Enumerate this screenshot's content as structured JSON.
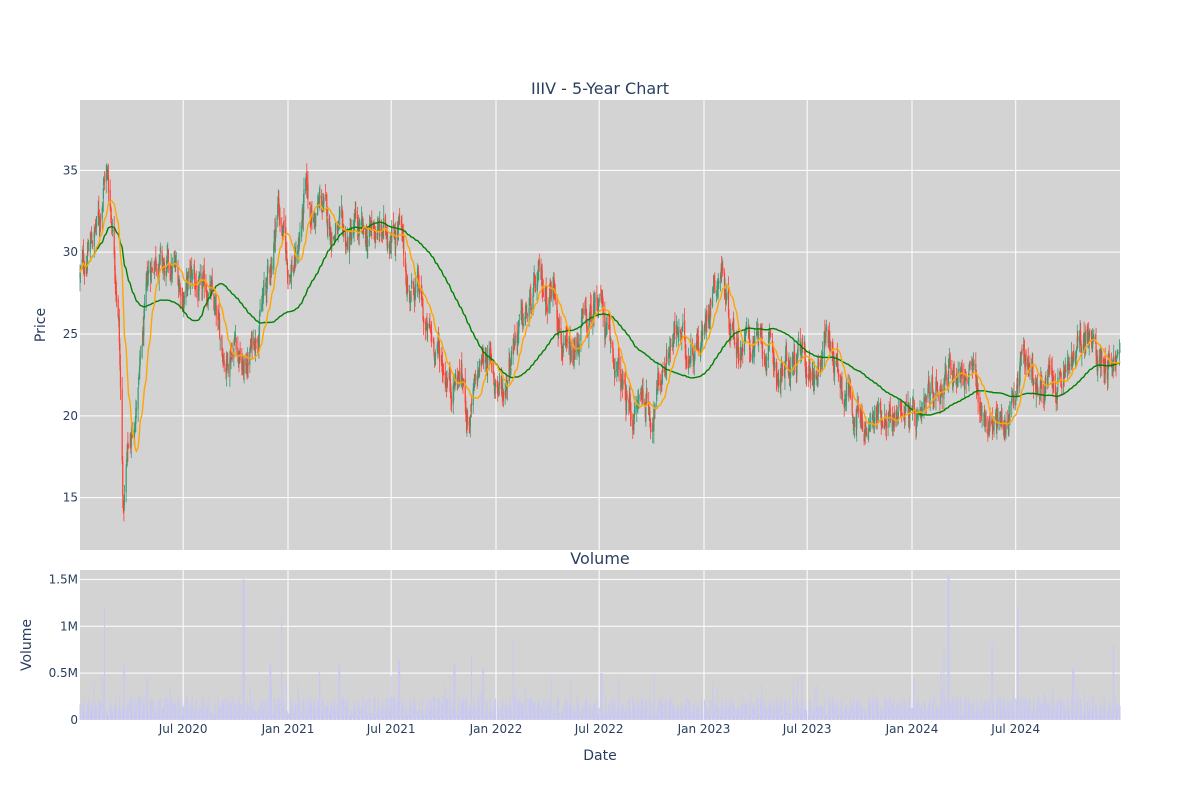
{
  "chart_data": [
    {
      "type": "candlestick",
      "title": "IIIV - 5-Year Chart",
      "xlabel": "",
      "ylabel": "Price",
      "ylim": [
        11.8,
        39.3
      ],
      "yticks": [
        15,
        20,
        25,
        30,
        35
      ],
      "x_range": [
        "2020-01-02",
        "2024-12-31"
      ],
      "grid": true,
      "colors": {
        "increasing": "#3d9970",
        "decreasing": "#ff4136",
        "background": "#d3d3d3",
        "ma_fast": "#ffa500",
        "ma_slow": "#008000"
      },
      "price_anchors": [
        [
          "2020-01-02",
          28.5
        ],
        [
          "2020-01-20",
          30.5
        ],
        [
          "2020-02-05",
          32.0
        ],
        [
          "2020-02-15",
          35.0
        ],
        [
          "2020-02-20",
          34.5
        ],
        [
          "2020-03-01",
          31.0
        ],
        [
          "2020-03-10",
          26.0
        ],
        [
          "2020-03-18",
          14.0
        ],
        [
          "2020-03-25",
          17.5
        ],
        [
          "2020-04-05",
          19.5
        ],
        [
          "2020-04-15",
          22.0
        ],
        [
          "2020-05-01",
          28.5
        ],
        [
          "2020-05-15",
          30.0
        ],
        [
          "2020-06-01",
          28.5
        ],
        [
          "2020-06-15",
          29.0
        ],
        [
          "2020-07-01",
          27.5
        ],
        [
          "2020-07-20",
          28.5
        ],
        [
          "2020-08-01",
          27.0
        ],
        [
          "2020-08-15",
          28.0
        ],
        [
          "2020-09-01",
          25.0
        ],
        [
          "2020-09-15",
          23.5
        ],
        [
          "2020-10-01",
          25.0
        ],
        [
          "2020-10-15",
          22.5
        ],
        [
          "2020-11-01",
          24.5
        ],
        [
          "2020-11-15",
          26.5
        ],
        [
          "2020-12-01",
          29.0
        ],
        [
          "2020-12-15",
          33.0
        ],
        [
          "2021-01-01",
          29.0
        ],
        [
          "2021-01-15",
          29.5
        ],
        [
          "2021-02-01",
          33.5
        ],
        [
          "2021-02-15",
          32.0
        ],
        [
          "2021-03-01",
          33.0
        ],
        [
          "2021-03-15",
          31.5
        ],
        [
          "2021-04-01",
          31.0
        ],
        [
          "2021-04-15",
          30.5
        ],
        [
          "2021-05-01",
          31.5
        ],
        [
          "2021-05-15",
          30.5
        ],
        [
          "2021-06-01",
          31.5
        ],
        [
          "2021-06-15",
          31.0
        ],
        [
          "2021-07-01",
          31.5
        ],
        [
          "2021-07-15",
          31.5
        ],
        [
          "2021-08-01",
          27.5
        ],
        [
          "2021-08-15",
          28.0
        ],
        [
          "2021-09-01",
          25.0
        ],
        [
          "2021-09-15",
          24.5
        ],
        [
          "2021-10-01",
          23.0
        ],
        [
          "2021-10-15",
          22.0
        ],
        [
          "2021-11-01",
          22.5
        ],
        [
          "2021-11-15",
          19.5
        ],
        [
          "2021-12-01",
          22.5
        ],
        [
          "2021-12-15",
          24.0
        ],
        [
          "2022-01-01",
          22.0
        ],
        [
          "2022-01-15",
          21.5
        ],
        [
          "2022-02-01",
          25.0
        ],
        [
          "2022-02-15",
          25.5
        ],
        [
          "2022-03-01",
          26.5
        ],
        [
          "2022-03-15",
          28.0
        ],
        [
          "2022-04-01",
          27.5
        ],
        [
          "2022-04-15",
          28.0
        ],
        [
          "2022-05-01",
          23.5
        ],
        [
          "2022-05-15",
          23.0
        ],
        [
          "2022-06-01",
          25.5
        ],
        [
          "2022-06-15",
          25.5
        ],
        [
          "2022-07-01",
          28.0
        ],
        [
          "2022-07-15",
          24.5
        ],
        [
          "2022-08-01",
          23.0
        ],
        [
          "2022-08-15",
          21.0
        ],
        [
          "2022-09-01",
          20.0
        ],
        [
          "2022-09-15",
          21.5
        ],
        [
          "2022-10-01",
          20.0
        ],
        [
          "2022-10-15",
          22.0
        ],
        [
          "2022-11-01",
          24.5
        ],
        [
          "2022-11-15",
          25.0
        ],
        [
          "2022-12-01",
          24.0
        ],
        [
          "2022-12-15",
          24.5
        ],
        [
          "2023-01-01",
          25.0
        ],
        [
          "2023-01-15",
          28.0
        ],
        [
          "2023-02-01",
          29.0
        ],
        [
          "2023-02-15",
          26.0
        ],
        [
          "2023-03-01",
          24.5
        ],
        [
          "2023-03-15",
          24.5
        ],
        [
          "2023-04-01",
          24.5
        ],
        [
          "2023-04-15",
          24.0
        ],
        [
          "2023-05-01",
          23.5
        ],
        [
          "2023-05-15",
          22.5
        ],
        [
          "2023-06-01",
          23.0
        ],
        [
          "2023-06-15",
          23.5
        ],
        [
          "2023-07-01",
          23.0
        ],
        [
          "2023-07-15",
          22.5
        ],
        [
          "2023-08-01",
          25.0
        ],
        [
          "2023-08-15",
          24.0
        ],
        [
          "2023-09-01",
          22.0
        ],
        [
          "2023-09-15",
          21.5
        ],
        [
          "2023-10-01",
          19.5
        ],
        [
          "2023-10-15",
          19.0
        ],
        [
          "2023-11-01",
          20.0
        ],
        [
          "2023-11-15",
          20.5
        ],
        [
          "2023-12-01",
          19.5
        ],
        [
          "2023-12-15",
          21.0
        ],
        [
          "2024-01-01",
          20.0
        ],
        [
          "2024-01-15",
          19.0
        ],
        [
          "2024-02-01",
          21.0
        ],
        [
          "2024-02-15",
          22.0
        ],
        [
          "2024-03-01",
          22.5
        ],
        [
          "2024-03-15",
          23.0
        ],
        [
          "2024-04-01",
          22.5
        ],
        [
          "2024-04-15",
          22.5
        ],
        [
          "2024-05-01",
          20.5
        ],
        [
          "2024-05-15",
          19.5
        ],
        [
          "2024-06-01",
          19.5
        ],
        [
          "2024-06-15",
          19.5
        ],
        [
          "2024-07-01",
          22.0
        ],
        [
          "2024-07-15",
          24.0
        ],
        [
          "2024-08-01",
          22.5
        ],
        [
          "2024-08-15",
          21.5
        ],
        [
          "2024-09-01",
          22.0
        ],
        [
          "2024-09-15",
          21.5
        ],
        [
          "2024-10-01",
          23.0
        ],
        [
          "2024-10-15",
          23.5
        ],
        [
          "2024-11-01",
          25.0
        ],
        [
          "2024-11-15",
          24.0
        ],
        [
          "2024-12-01",
          23.5
        ],
        [
          "2024-12-15",
          23.5
        ],
        [
          "2024-12-31",
          23.5
        ]
      ],
      "ma_fast_label": "",
      "ma_slow_label": ""
    },
    {
      "type": "bar",
      "title": "Volume",
      "xlabel": "Date",
      "ylabel": "Volume",
      "ylim": [
        0,
        1.6
      ],
      "yticks": [
        0,
        0.5,
        1,
        1.5
      ],
      "ytick_labels": [
        "0",
        "0.5M",
        "1M",
        "1.5M"
      ],
      "xtick_labels": [
        "Jul 2020",
        "Jan 2021",
        "Jul 2021",
        "Jan 2022",
        "Jul 2022",
        "Jan 2023",
        "Jul 2023",
        "Jan 2024",
        "Jul 2024"
      ],
      "xtick_dates": [
        "2020-07-01",
        "2021-01-01",
        "2021-07-01",
        "2022-01-01",
        "2022-07-01",
        "2023-01-01",
        "2023-07-01",
        "2024-01-01",
        "2024-07-01"
      ],
      "colors": {
        "bar": "#c9c9f0",
        "background": "#d3d3d3"
      },
      "volume_spikes": [
        [
          "2020-02-15",
          1.2
        ],
        [
          "2020-03-20",
          0.6
        ],
        [
          "2020-10-15",
          1.5
        ],
        [
          "2020-12-01",
          0.6
        ],
        [
          "2020-12-20",
          1.1
        ],
        [
          "2021-04-01",
          0.6
        ],
        [
          "2021-07-15",
          0.65
        ],
        [
          "2021-10-20",
          0.6
        ],
        [
          "2021-11-20",
          0.7
        ],
        [
          "2021-12-10",
          0.55
        ],
        [
          "2022-01-30",
          0.85
        ],
        [
          "2022-07-05",
          0.5
        ],
        [
          "2023-01-15",
          0.4
        ],
        [
          "2024-01-05",
          0.45
        ],
        [
          "2024-02-25",
          0.75
        ],
        [
          "2024-03-05",
          1.55
        ],
        [
          "2024-05-20",
          0.8
        ],
        [
          "2024-07-05",
          1.2
        ],
        [
          "2024-10-10",
          0.55
        ],
        [
          "2024-12-20",
          0.8
        ]
      ]
    }
  ]
}
